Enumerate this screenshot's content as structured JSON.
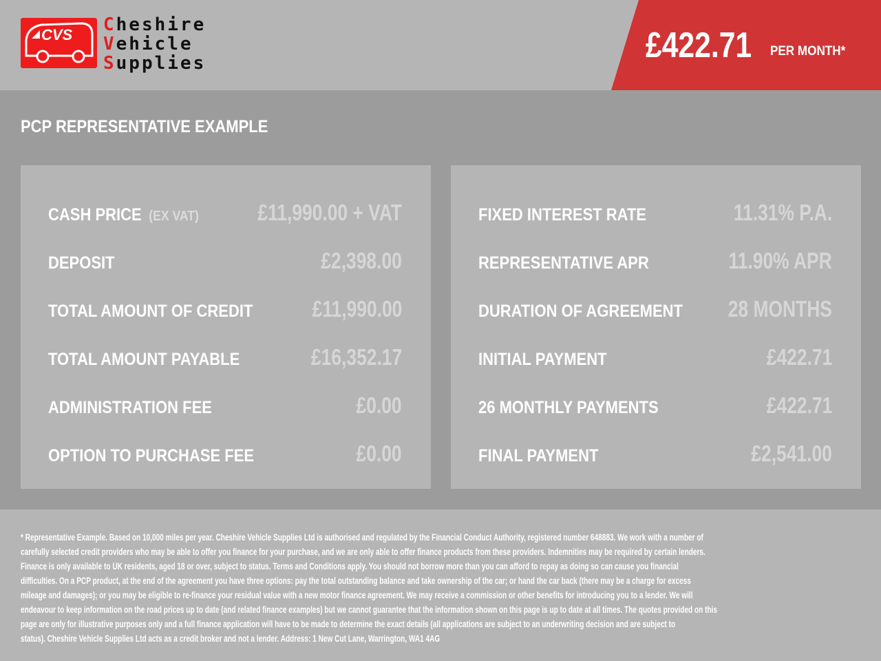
{
  "brand": {
    "logo_text": "CVS",
    "name_lines": [
      {
        "initial": "C",
        "rest": "heshire"
      },
      {
        "initial": "V",
        "rest": "ehicle"
      },
      {
        "initial": "S",
        "rest": "upplies"
      }
    ],
    "accent": "#d03434"
  },
  "price": {
    "amount": "£422.71",
    "per": "PER MONTH*"
  },
  "section_title": "PCP REPRESENTATIVE EXAMPLE",
  "left_rows": [
    {
      "label": "CASH PRICE",
      "sub": "(EX VAT)",
      "value": "£11,990.00 + VAT"
    },
    {
      "label": "DEPOSIT",
      "value": "£2,398.00"
    },
    {
      "label": "TOTAL AMOUNT OF CREDIT",
      "value": "£11,990.00"
    },
    {
      "label": "TOTAL AMOUNT PAYABLE",
      "value": "£16,352.17"
    },
    {
      "label": "ADMINISTRATION FEE",
      "value": "£0.00"
    },
    {
      "label": "OPTION TO PURCHASE FEE",
      "value": "£0.00"
    }
  ],
  "right_rows": [
    {
      "label": "FIXED INTEREST RATE",
      "value": "11.31% P.A."
    },
    {
      "label": "REPRESENTATIVE APR",
      "value": "11.90% APR"
    },
    {
      "label": "DURATION OF AGREEMENT",
      "value": "28 MONTHS"
    },
    {
      "label": "INITIAL PAYMENT",
      "value": "£422.71"
    },
    {
      "label": "26 MONTHLY PAYMENTS",
      "value": "£422.71"
    },
    {
      "label": "FINAL PAYMENT",
      "value": "£2,541.00"
    }
  ],
  "disclaimer_lines": [
    "* Representative Example. Based on 10,000 miles per year. Cheshire Vehicle Supplies Ltd is authorised and regulated by the Financial Conduct Authority, registered number 648883. We work with a number of",
    "carefully selected credit providers who may be able to offer you finance for your purchase, and we are only able to offer finance products from these providers. Indemnities may be required by certain lenders.",
    "Finance is only available to UK residents, aged 18 or over, subject to status. Terms and Conditions apply. You should not borrow more than you can afford to repay as doing so can cause you financial",
    "difficulties. On a PCP product, at the end of the agreement you have three options: pay the total outstanding balance and take ownership of the car; or hand the car back (there may be a charge for excess",
    "mileage and damages); or you may be eligible to re-finance your residual value with a new motor finance agreement. We may receive a commission or other benefits for introducing you to a lender. We will",
    "endeavour to keep information on the road prices up to date (and related finance examples) but we cannot guarantee that the information shown on this page is up to date at all times. The quotes provided on this",
    "page are only for illustrative purposes only and a full finance application will have to be made to determine the exact details (all applications are subject to an underwriting decision and are subject to",
    "status). Cheshire Vehicle Supplies Ltd acts as a credit broker and not a lender. Address:  1 New Cut Lane, Warrington, WA1 4AG"
  ]
}
